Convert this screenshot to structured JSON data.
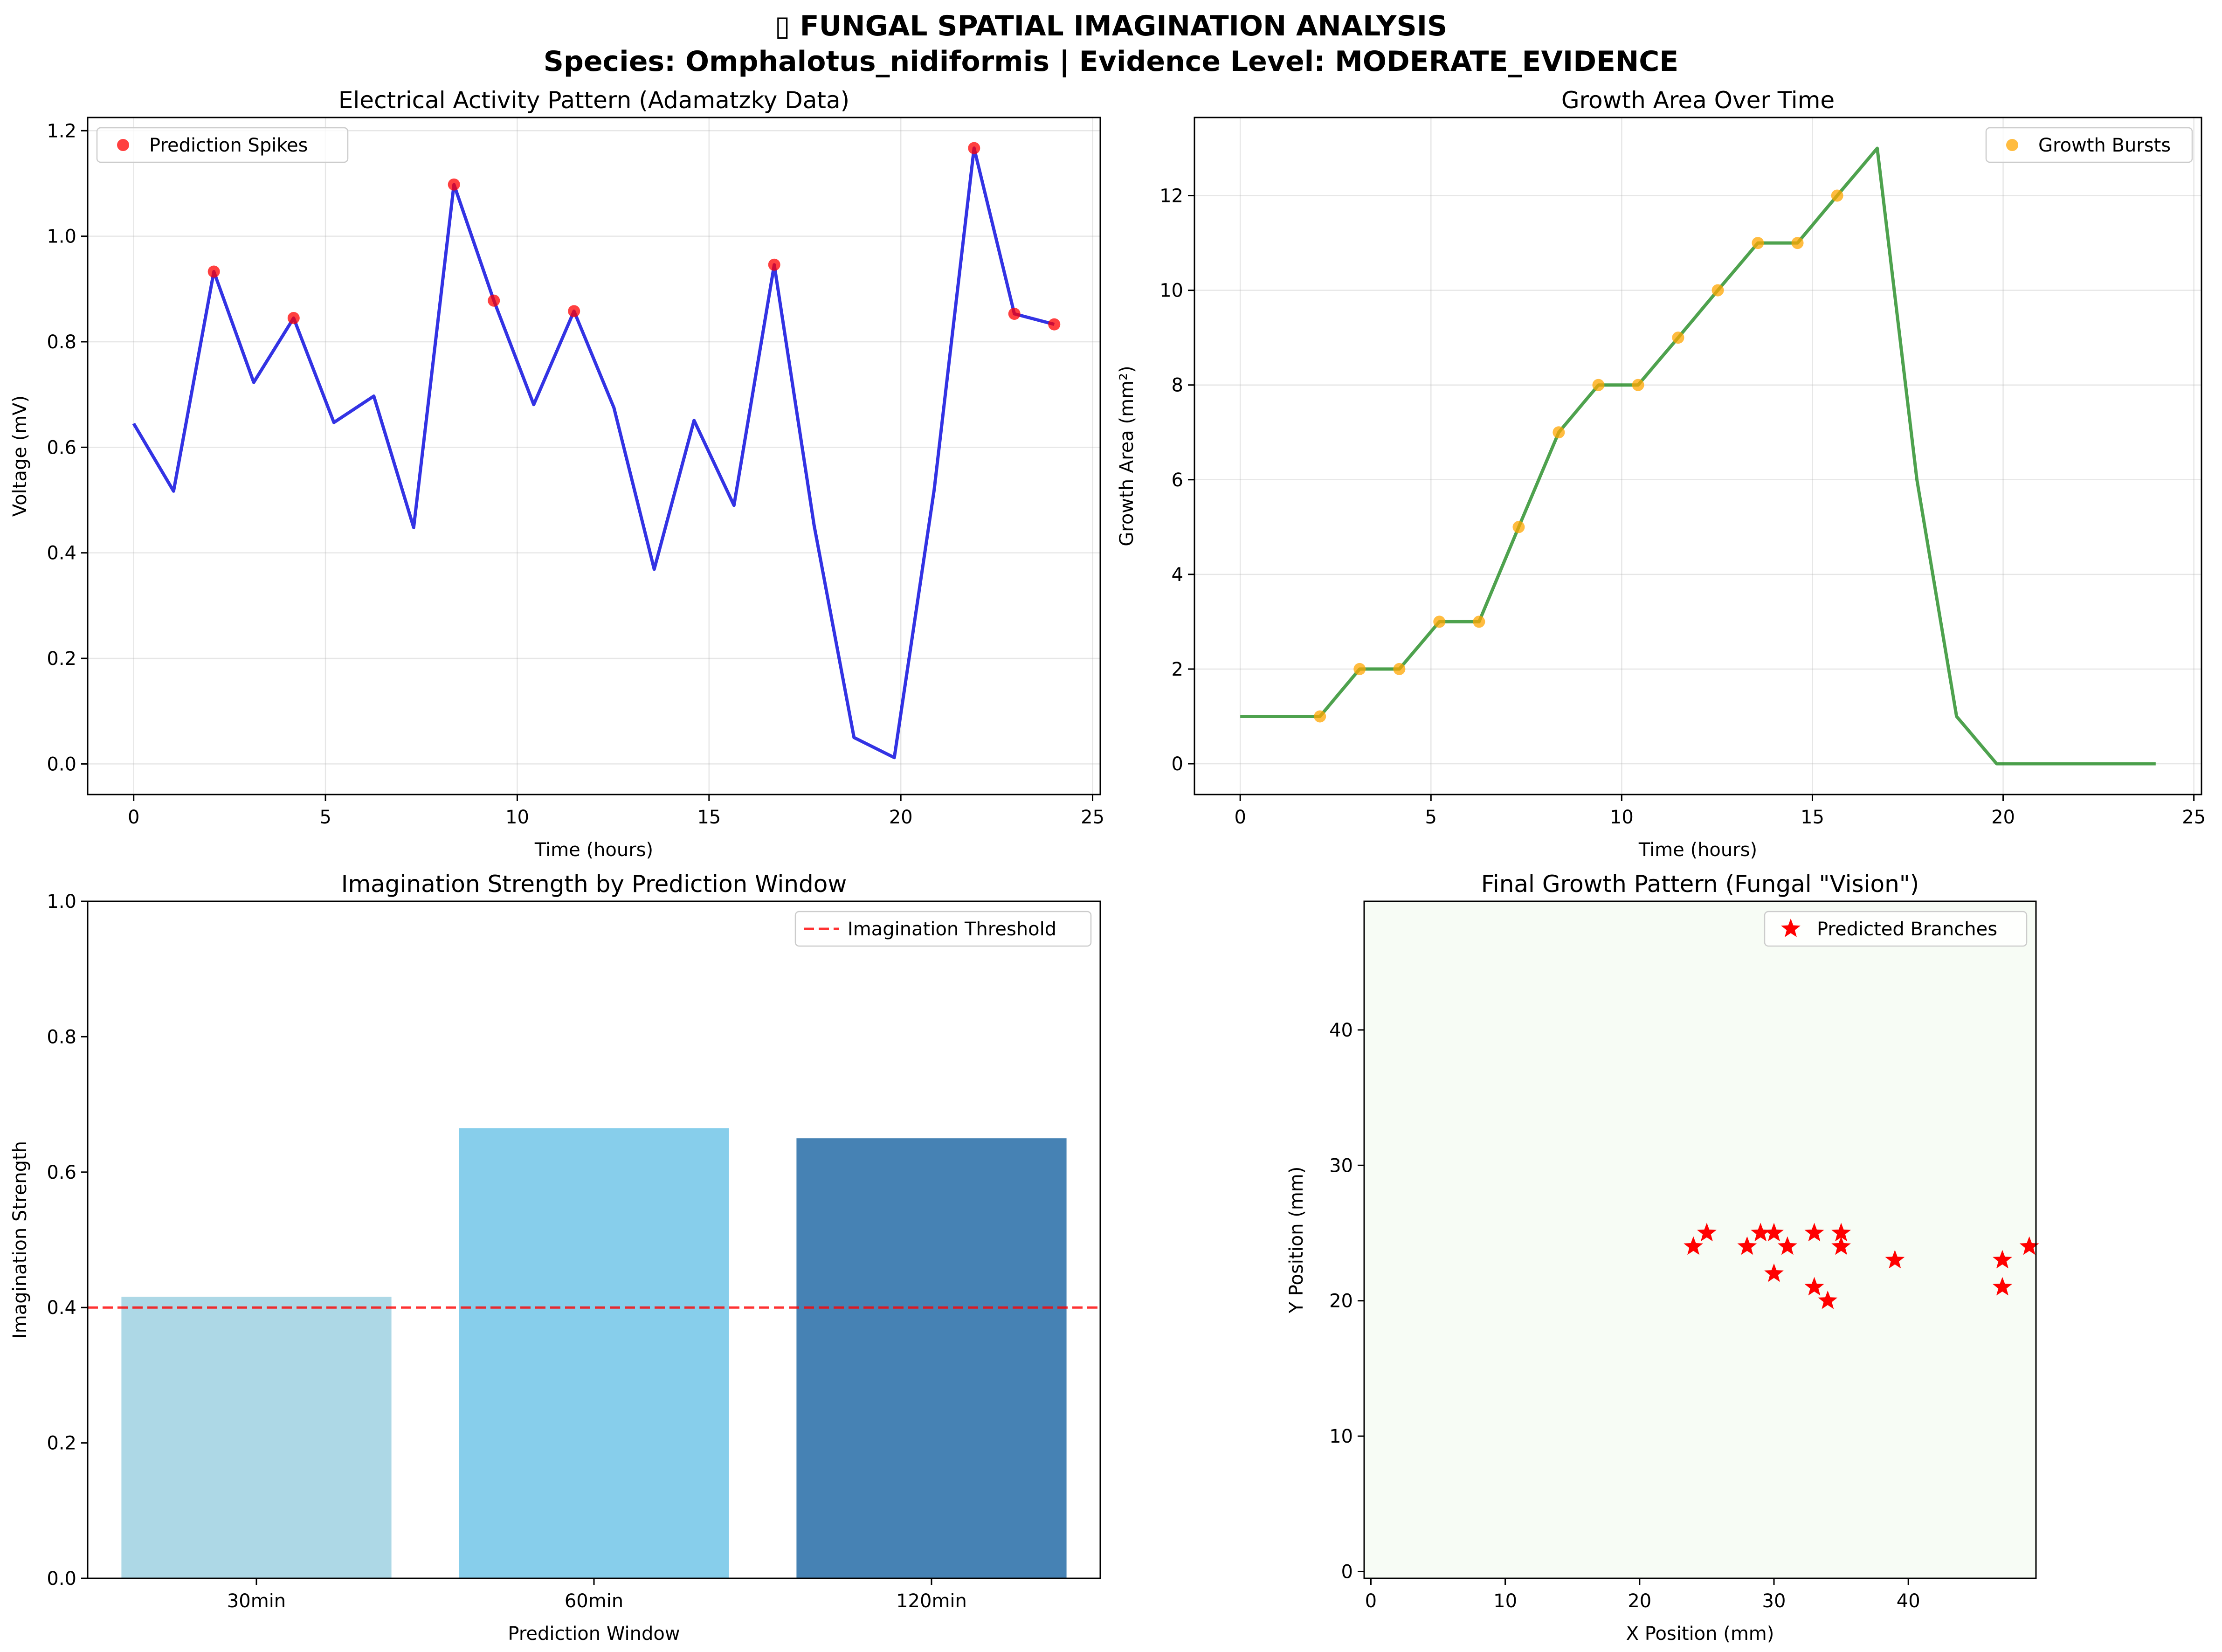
{
  "figure": {
    "title_line1": "▯ FUNGAL SPATIAL IMAGINATION ANALYSIS",
    "title_line2": "Species: Omphalotus_nidiformis | Evidence Level: MODERATE_EVIDENCE"
  },
  "chart_data": [
    {
      "id": "electrical",
      "type": "line",
      "title": "Electrical Activity Pattern (Adamatzky Data)",
      "xlabel": "Time (hours)",
      "ylabel": "Voltage (mV)",
      "xlim": [
        -1.2,
        25.2
      ],
      "ylim": [
        -0.058,
        1.225
      ],
      "xticks": [
        0,
        5,
        10,
        15,
        20,
        25
      ],
      "yticks": [
        0.0,
        0.2,
        0.4,
        0.6,
        0.8,
        1.0,
        1.2
      ],
      "ytick_labels": [
        "0.0",
        "0.2",
        "0.4",
        "0.6",
        "0.8",
        "1.0",
        "1.2"
      ],
      "grid": true,
      "legend_position": "upper left",
      "series": [
        {
          "kind": "line",
          "color": "#0000dd",
          "x": [
            0,
            1.04,
            2.09,
            3.13,
            4.17,
            5.22,
            6.26,
            7.3,
            8.35,
            9.39,
            10.43,
            11.48,
            12.52,
            13.57,
            14.61,
            15.65,
            16.7,
            17.74,
            18.78,
            19.83,
            20.87,
            21.91,
            22.96,
            24
          ],
          "y": [
            0.645,
            0.517,
            0.933,
            0.723,
            0.845,
            0.647,
            0.697,
            0.448,
            1.098,
            0.878,
            0.681,
            0.858,
            0.675,
            0.369,
            0.651,
            0.49,
            0.946,
            0.452,
            0.05,
            0.012,
            0.52,
            1.167,
            0.853,
            0.833
          ]
        },
        {
          "kind": "scatter",
          "name": "Prediction Spikes",
          "color": "#ff0000",
          "x": [
            2.09,
            4.17,
            8.35,
            9.39,
            11.48,
            16.7,
            21.91,
            22.96,
            24
          ],
          "y": [
            0.933,
            0.845,
            1.098,
            0.878,
            0.858,
            0.946,
            1.167,
            0.853,
            0.833
          ]
        }
      ]
    },
    {
      "id": "growth",
      "type": "line",
      "title": "Growth Area Over Time",
      "xlabel": "Time (hours)",
      "ylabel": "Growth Area (mm²)",
      "xlim": [
        -1.2,
        25.2
      ],
      "ylim": [
        -0.65,
        13.65
      ],
      "xticks": [
        0,
        5,
        10,
        15,
        20,
        25
      ],
      "yticks": [
        0,
        2,
        4,
        6,
        8,
        10,
        12
      ],
      "ytick_labels": [
        "0",
        "2",
        "4",
        "6",
        "8",
        "10",
        "12"
      ],
      "grid": true,
      "legend_position": "upper right",
      "series": [
        {
          "kind": "line",
          "color": "#228b22",
          "x": [
            0,
            1.04,
            2.09,
            3.13,
            4.17,
            5.22,
            6.26,
            7.3,
            8.35,
            9.39,
            10.43,
            11.48,
            12.52,
            13.57,
            14.61,
            15.65,
            16.7,
            17.74,
            18.78,
            19.83,
            20.87,
            21.91,
            22.96,
            24
          ],
          "y": [
            1,
            1,
            1,
            2,
            2,
            3,
            3,
            5,
            7,
            8,
            8,
            9,
            10,
            11,
            11,
            12,
            13,
            6,
            1,
            0,
            0,
            0,
            0,
            0
          ]
        },
        {
          "kind": "scatter",
          "name": "Growth Bursts",
          "color": "#ffa500",
          "x": [
            2.09,
            3.13,
            4.17,
            5.22,
            6.26,
            7.3,
            8.35,
            9.39,
            10.43,
            11.48,
            12.52,
            13.57,
            14.61,
            15.65
          ],
          "y": [
            1,
            2,
            2,
            3,
            3,
            5,
            7,
            8,
            8,
            9,
            10,
            11,
            11,
            12
          ]
        }
      ]
    },
    {
      "id": "imagination",
      "type": "bar",
      "title": "Imagination Strength by Prediction Window",
      "xlabel": "Prediction Window",
      "ylabel": "Imagination Strength",
      "categories": [
        "30min",
        "60min",
        "120min"
      ],
      "values": [
        0.416,
        0.665,
        0.65
      ],
      "colors": [
        "#add8e6",
        "#87ceeb",
        "#4682b4"
      ],
      "ylim": [
        0,
        1.0
      ],
      "yticks": [
        0.0,
        0.2,
        0.4,
        0.6,
        0.8,
        1.0
      ],
      "ytick_labels": [
        "0.0",
        "0.2",
        "0.4",
        "0.6",
        "0.8",
        "1.0"
      ],
      "grid": false,
      "threshold": {
        "name": "Imagination Threshold",
        "value": 0.4,
        "color": "#ff0000"
      },
      "legend_position": "upper right"
    },
    {
      "id": "pattern",
      "type": "scatter",
      "title": "Final Growth Pattern (Fungal \"Vision\")",
      "xlabel": "X Position (mm)",
      "ylabel": "Y Position (mm)",
      "xlim": [
        -0.5,
        49.5
      ],
      "ylim": [
        -0.5,
        49.5
      ],
      "xticks": [
        0,
        10,
        20,
        30,
        40
      ],
      "yticks": [
        0,
        10,
        20,
        30,
        40
      ],
      "background": "#f7fcf5",
      "grid": false,
      "legend_position": "upper right",
      "series": [
        {
          "kind": "star",
          "name": "Predicted Branches",
          "color": "#ff0000",
          "x": [
            24,
            25,
            28,
            29,
            30,
            30,
            31,
            33,
            33,
            34,
            35,
            35,
            39,
            47,
            47,
            49
          ],
          "y": [
            24,
            25,
            24,
            25,
            25,
            22,
            24,
            25,
            21,
            20,
            25,
            24,
            23,
            23,
            21,
            24
          ]
        }
      ]
    }
  ]
}
